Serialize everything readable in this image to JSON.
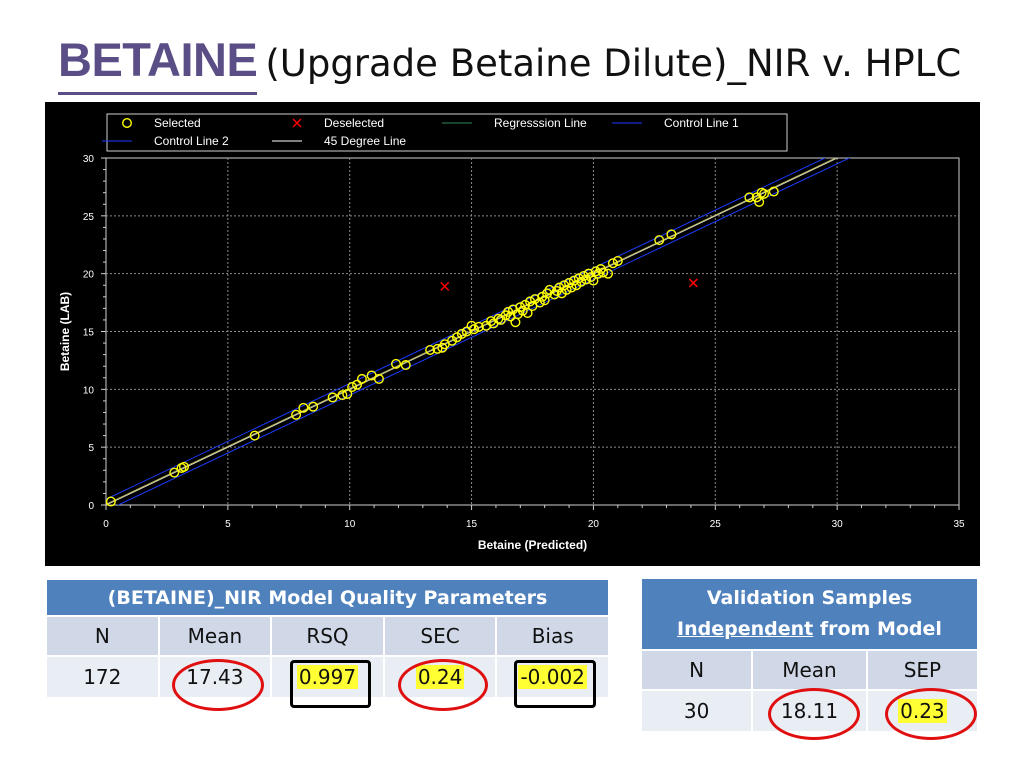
{
  "title": {
    "main": "BETAINE",
    "sub": "(Upgrade Betaine Dilute)_NIR v. HPLC"
  },
  "chart_data": {
    "type": "scatter",
    "xlabel": "Betaine (Predicted)",
    "ylabel": "Betaine (LAB)",
    "xlim": [
      0,
      35
    ],
    "ylim": [
      0,
      30
    ],
    "x_ticks": [
      0,
      5,
      10,
      15,
      20,
      25,
      30,
      35
    ],
    "y_ticks": [
      0,
      5,
      10,
      15,
      20,
      25,
      30
    ],
    "grid": true,
    "legend_position": "top",
    "legend": [
      {
        "label": "Selected",
        "type": "marker-circle",
        "color": "#ffff00"
      },
      {
        "label": "Deselected",
        "type": "marker-x",
        "color": "#ff0000"
      },
      {
        "label": "Regresssion Line",
        "type": "line",
        "color": "#2e8b57"
      },
      {
        "label": "Control Line 1",
        "type": "line",
        "color": "#1a3cff"
      },
      {
        "label": "Control Line 2",
        "type": "line",
        "color": "#1a3cff"
      },
      {
        "label": "45 Degree Line",
        "type": "line",
        "color": "#ffffff"
      }
    ],
    "colors": {
      "background": "#000000",
      "selected": "#ffff00",
      "deselected": "#ff0000",
      "grid": "#888888",
      "regression": "#b5b56a",
      "control": "#1a3cff"
    },
    "control_offset": 0.5,
    "series": [
      {
        "name": "Selected",
        "points": [
          [
            0.2,
            0.3
          ],
          [
            2.8,
            2.8
          ],
          [
            3.1,
            3.2
          ],
          [
            3.2,
            3.3
          ],
          [
            6.1,
            6.0
          ],
          [
            7.8,
            7.8
          ],
          [
            8.1,
            8.4
          ],
          [
            8.5,
            8.5
          ],
          [
            9.3,
            9.3
          ],
          [
            9.7,
            9.5
          ],
          [
            9.9,
            9.6
          ],
          [
            10.1,
            10.2
          ],
          [
            10.3,
            10.4
          ],
          [
            10.5,
            10.9
          ],
          [
            10.9,
            11.2
          ],
          [
            11.2,
            10.9
          ],
          [
            11.9,
            12.2
          ],
          [
            12.3,
            12.1
          ],
          [
            13.3,
            13.4
          ],
          [
            13.6,
            13.5
          ],
          [
            13.8,
            13.6
          ],
          [
            13.9,
            13.9
          ],
          [
            14.2,
            14.2
          ],
          [
            14.4,
            14.5
          ],
          [
            14.6,
            14.8
          ],
          [
            14.8,
            15.0
          ],
          [
            15.0,
            15.5
          ],
          [
            15.1,
            15.2
          ],
          [
            15.3,
            15.4
          ],
          [
            15.6,
            15.5
          ],
          [
            15.8,
            15.9
          ],
          [
            15.9,
            15.7
          ],
          [
            16.1,
            16.1
          ],
          [
            16.2,
            16.0
          ],
          [
            16.4,
            16.4
          ],
          [
            16.5,
            16.7
          ],
          [
            16.6,
            16.3
          ],
          [
            16.7,
            16.9
          ],
          [
            16.8,
            15.8
          ],
          [
            16.9,
            16.5
          ],
          [
            17.0,
            17.1
          ],
          [
            17.1,
            16.8
          ],
          [
            17.2,
            17.3
          ],
          [
            17.3,
            16.6
          ],
          [
            17.4,
            17.6
          ],
          [
            17.5,
            17.2
          ],
          [
            17.6,
            17.8
          ],
          [
            17.8,
            17.5
          ],
          [
            17.9,
            18.0
          ],
          [
            18.0,
            17.7
          ],
          [
            18.1,
            18.3
          ],
          [
            18.2,
            18.6
          ],
          [
            18.4,
            18.2
          ],
          [
            18.5,
            18.5
          ],
          [
            18.6,
            18.8
          ],
          [
            18.7,
            18.3
          ],
          [
            18.8,
            19.0
          ],
          [
            18.9,
            18.6
          ],
          [
            19.0,
            19.2
          ],
          [
            19.1,
            18.8
          ],
          [
            19.2,
            19.4
          ],
          [
            19.3,
            19.0
          ],
          [
            19.4,
            19.6
          ],
          [
            19.5,
            19.3
          ],
          [
            19.6,
            19.8
          ],
          [
            19.7,
            19.5
          ],
          [
            19.8,
            20.0
          ],
          [
            19.9,
            19.7
          ],
          [
            20.0,
            19.4
          ],
          [
            20.1,
            20.2
          ],
          [
            20.2,
            20.0
          ],
          [
            20.3,
            20.4
          ],
          [
            20.4,
            20.1
          ],
          [
            20.6,
            20.0
          ],
          [
            20.8,
            20.9
          ],
          [
            21.0,
            21.1
          ],
          [
            22.7,
            22.9
          ],
          [
            23.2,
            23.4
          ],
          [
            26.4,
            26.6
          ],
          [
            26.7,
            26.6
          ],
          [
            26.8,
            26.2
          ],
          [
            26.9,
            27.0
          ],
          [
            27.0,
            26.9
          ],
          [
            27.4,
            27.1
          ]
        ]
      },
      {
        "name": "Deselected",
        "points": [
          [
            13.9,
            18.9
          ],
          [
            24.1,
            19.2
          ]
        ]
      }
    ]
  },
  "table1": {
    "title": "(BETAINE)_NIR Model Quality Parameters",
    "headers": [
      "N",
      "Mean",
      "RSQ",
      "SEC",
      "Bias"
    ],
    "values": [
      "172",
      "17.43",
      "0.997",
      "0.24",
      "-0.002"
    ]
  },
  "table2": {
    "title_line1": "Validation Samples",
    "title_underlined": "Independent",
    "title_rest": " from Model",
    "headers": [
      "N",
      "Mean",
      "SEP"
    ],
    "values": [
      "30",
      "18.11",
      "0.23"
    ]
  }
}
